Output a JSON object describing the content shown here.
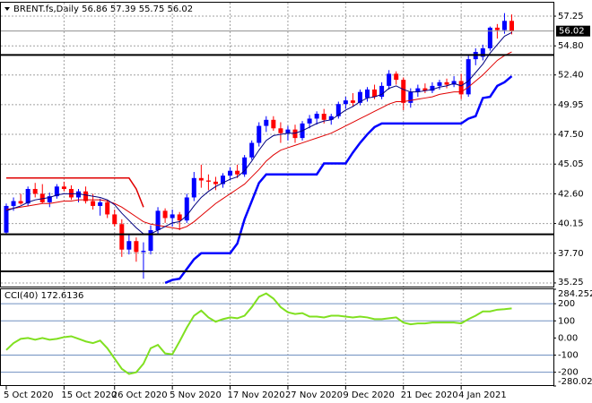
{
  "chart_data": [
    {
      "type": "candlestick",
      "title": "BRENT.fs,Daily  56.86 57.39 55.75 56.02",
      "categories": [
        "5 Oct 2020",
        null,
        null,
        null,
        null,
        null,
        null,
        null,
        "15 Oct 2020",
        null,
        null,
        null,
        null,
        null,
        null,
        "26 Oct 2020",
        null,
        null,
        null,
        null,
        null,
        null,
        null,
        "5 Nov 2020",
        null,
        null,
        null,
        null,
        null,
        null,
        null,
        "17 Nov 2020",
        null,
        null,
        null,
        null,
        null,
        null,
        null,
        "27 Nov 2020",
        null,
        null,
        null,
        null,
        null,
        null,
        null,
        "9 Dec 2020",
        null,
        null,
        null,
        null,
        null,
        null,
        null,
        "21 Dec 2020",
        null,
        null,
        null,
        null,
        null,
        null,
        null,
        "4 Jan 2021",
        null,
        null,
        null,
        null,
        null,
        null,
        null
      ],
      "open": [
        39.4,
        41.6,
        42.0,
        41.8,
        43.0,
        42.6,
        41.9,
        42.4,
        43.2,
        43.0,
        42.3,
        42.8,
        42.0,
        41.6,
        41.9,
        40.9,
        40.1,
        38.0,
        38.7,
        37.8,
        37.9,
        39.6,
        41.2,
        40.6,
        40.9,
        40.4,
        42.3,
        43.9,
        43.7,
        43.6,
        43.4,
        44.1,
        44.5,
        44.2,
        45.6,
        46.8,
        48.2,
        48.7,
        48.0,
        47.6,
        47.9,
        47.2,
        48.4,
        48.8,
        49.2,
        48.7,
        49.0,
        50.0,
        50.3,
        50.1,
        50.5,
        51.2,
        50.6,
        51.5,
        52.5,
        52.0,
        50.1,
        51.0,
        51.3,
        51.1,
        51.5,
        51.8,
        51.6,
        51.9,
        50.8,
        53.7,
        53.9,
        54.6,
        56.3,
        56.1,
        56.86
      ],
      "high": [
        41.8,
        42.3,
        42.6,
        43.2,
        43.5,
        43.4,
        42.7,
        43.4,
        43.6,
        43.3,
        43.0,
        43.2,
        42.6,
        42.2,
        42.1,
        41.3,
        40.5,
        39.2,
        39.0,
        38.6,
        40.0,
        41.5,
        41.4,
        41.3,
        41.1,
        42.6,
        44.4,
        45.0,
        44.2,
        44.0,
        44.3,
        44.8,
        45.0,
        45.8,
        47.0,
        48.5,
        49.0,
        49.0,
        48.5,
        48.2,
        48.3,
        48.6,
        49.1,
        49.4,
        49.6,
        49.2,
        50.2,
        50.6,
        50.9,
        51.2,
        51.4,
        51.6,
        51.8,
        52.8,
        52.7,
        52.2,
        51.3,
        51.6,
        51.7,
        51.8,
        52.0,
        52.1,
        52.3,
        52.5,
        54.0,
        54.6,
        54.9,
        56.4,
        56.6,
        57.5,
        57.39
      ],
      "low": [
        39.2,
        41.2,
        41.7,
        41.6,
        42.3,
        41.8,
        41.5,
        42.2,
        42.8,
        42.1,
        41.9,
        41.8,
        41.3,
        40.8,
        40.6,
        39.9,
        37.4,
        37.6,
        37.0,
        35.6,
        37.6,
        39.3,
        40.2,
        39.9,
        39.6,
        40.2,
        42.0,
        43.1,
        42.9,
        42.9,
        43.1,
        43.7,
        43.9,
        44.0,
        45.4,
        46.5,
        47.7,
        47.8,
        46.8,
        47.0,
        46.8,
        47.0,
        48.0,
        48.3,
        48.4,
        48.3,
        48.8,
        49.6,
        49.8,
        49.9,
        50.2,
        50.4,
        50.4,
        51.2,
        51.6,
        49.5,
        49.7,
        50.6,
        50.9,
        50.9,
        51.2,
        51.3,
        51.4,
        50.4,
        50.6,
        53.2,
        53.6,
        54.4,
        55.4,
        55.8,
        55.75
      ],
      "close": [
        41.6,
        42.0,
        41.8,
        43.0,
        42.6,
        41.9,
        42.4,
        43.2,
        43.0,
        42.3,
        42.8,
        42.0,
        41.6,
        41.9,
        40.9,
        40.1,
        38.0,
        38.7,
        37.8,
        37.9,
        39.6,
        41.2,
        40.6,
        40.9,
        40.4,
        42.3,
        43.9,
        43.7,
        43.6,
        43.4,
        44.1,
        44.5,
        44.2,
        45.6,
        46.8,
        48.2,
        48.7,
        48.0,
        47.6,
        47.9,
        47.2,
        48.4,
        48.8,
        49.2,
        48.7,
        49.0,
        50.0,
        50.3,
        50.1,
        51.0,
        51.2,
        50.6,
        51.5,
        52.5,
        52.0,
        50.1,
        51.0,
        51.3,
        51.1,
        51.5,
        51.8,
        51.6,
        51.9,
        50.8,
        53.7,
        54.3,
        54.6,
        56.3,
        56.1,
        56.86,
        56.02
      ],
      "up_color": "#0000ff",
      "down_color": "#ff0000",
      "series": [
        {
          "color": "#e00000",
          "width": 1.5,
          "values": [
            43.9,
            43.9,
            43.9,
            43.9,
            43.9,
            43.9,
            43.9,
            43.9,
            43.9,
            43.9,
            43.9,
            43.9,
            43.9,
            43.9,
            43.9,
            43.9,
            43.9,
            43.9,
            43.0,
            41.5,
            null,
            null,
            null,
            null,
            null,
            null,
            null,
            null,
            null,
            null,
            null,
            null,
            null,
            null,
            null,
            null,
            null,
            null,
            null,
            null,
            null,
            null,
            null,
            null,
            null,
            null,
            null,
            null,
            null,
            null,
            null,
            null,
            null,
            null,
            null,
            null,
            null,
            null,
            null,
            null,
            null,
            null,
            null,
            null,
            null,
            null,
            null,
            null,
            null,
            null,
            null
          ]
        },
        {
          "color": "#e00000",
          "width": 1,
          "values": [
            41.3,
            41.4,
            41.5,
            41.6,
            41.7,
            41.8,
            41.8,
            41.9,
            42.0,
            42.0,
            42.1,
            42.1,
            42.1,
            42.1,
            42.0,
            41.8,
            41.5,
            41.1,
            40.7,
            40.3,
            40.1,
            40.0,
            39.9,
            39.8,
            39.7,
            39.9,
            40.3,
            40.8,
            41.3,
            41.8,
            42.2,
            42.6,
            43.0,
            43.4,
            44.0,
            44.6,
            45.3,
            45.8,
            46.2,
            46.4,
            46.6,
            46.8,
            47.0,
            47.2,
            47.4,
            47.6,
            47.9,
            48.2,
            48.5,
            48.8,
            49.1,
            49.4,
            49.7,
            50.0,
            50.2,
            50.2,
            50.3,
            50.4,
            50.5,
            50.6,
            50.8,
            50.9,
            51.0,
            51.0,
            51.4,
            51.9,
            52.4,
            53.0,
            53.6,
            54.0,
            54.3
          ]
        },
        {
          "color": "#000080",
          "width": 1,
          "values": [
            41.2,
            41.4,
            41.6,
            41.9,
            42.1,
            42.2,
            42.3,
            42.5,
            42.6,
            42.6,
            42.6,
            42.5,
            42.4,
            42.3,
            42.1,
            41.7,
            41.0,
            40.4,
            39.8,
            39.3,
            39.3,
            39.6,
            39.9,
            40.2,
            40.3,
            40.8,
            41.6,
            42.3,
            42.8,
            43.2,
            43.5,
            43.8,
            44.0,
            44.5,
            45.3,
            46.2,
            47.0,
            47.4,
            47.5,
            47.6,
            47.6,
            47.8,
            48.1,
            48.4,
            48.6,
            48.7,
            49.1,
            49.5,
            49.8,
            50.2,
            50.5,
            50.6,
            50.8,
            51.3,
            51.5,
            51.2,
            51.0,
            51.0,
            51.1,
            51.2,
            51.4,
            51.5,
            51.7,
            51.5,
            51.9,
            52.6,
            53.3,
            54.2,
            54.9,
            55.6,
            55.9
          ]
        },
        {
          "color": "#0000ff",
          "width": 2.5,
          "values": [
            null,
            null,
            null,
            null,
            null,
            null,
            null,
            null,
            null,
            null,
            null,
            null,
            null,
            null,
            null,
            null,
            null,
            null,
            null,
            null,
            null,
            null,
            35.25,
            35.5,
            35.6,
            36.4,
            37.2,
            37.7,
            37.7,
            37.7,
            37.7,
            37.7,
            38.5,
            40.5,
            42.0,
            43.5,
            44.2,
            44.2,
            44.2,
            44.2,
            44.2,
            44.2,
            44.2,
            44.2,
            45.1,
            45.1,
            45.1,
            45.1,
            46.0,
            46.8,
            47.5,
            48.1,
            48.4,
            48.4,
            48.4,
            48.4,
            48.4,
            48.4,
            48.4,
            48.4,
            48.4,
            48.4,
            48.4,
            48.4,
            48.8,
            49.0,
            50.5,
            50.6,
            51.5,
            51.8,
            52.3
          ]
        }
      ],
      "levels": [
        54.05,
        39.26,
        36.21
      ],
      "level_color": "#000000",
      "last_price": 56.02,
      "ylim": [
        34.95,
        58.36
      ],
      "yticks": [
        57.25,
        {
          "value": 54.8,
          "label": "54.80"
        },
        {
          "value": 52.4,
          "label": "52.40"
        },
        49.95,
        {
          "value": 47.5,
          "label": "47.50"
        },
        45.05,
        {
          "value": 42.6,
          "label": "42.60"
        },
        40.15,
        {
          "value": 37.7,
          "label": "37.70"
        },
        35.25
      ],
      "grid": true
    },
    {
      "type": "line",
      "title": "CCI(40) 172.6136",
      "color": "#80e020",
      "values": [
        -70,
        -30,
        -5,
        0,
        -10,
        0,
        -10,
        -5,
        5,
        10,
        -5,
        -20,
        -30,
        -15,
        -60,
        -120,
        -180,
        -210,
        -200,
        -150,
        -60,
        -40,
        -90,
        -95,
        -20,
        60,
        130,
        160,
        120,
        95,
        110,
        120,
        115,
        130,
        180,
        240,
        260,
        230,
        180,
        150,
        140,
        145,
        125,
        125,
        120,
        130,
        130,
        125,
        120,
        125,
        120,
        110,
        110,
        115,
        120,
        90,
        80,
        85,
        85,
        90,
        90,
        90,
        90,
        85,
        110,
        130,
        155,
        155,
        165,
        168,
        172.6136
      ],
      "levels": [
        200,
        100,
        -100,
        -200
      ],
      "level_color": "#7090c0",
      "ylim": [
        -280.028,
        284.2522
      ],
      "yticks": [
        284.2522,
        200,
        100,
        {
          "value": 0,
          "label": "0.00"
        },
        -100,
        -200,
        -280.028
      ],
      "grid": false
    }
  ]
}
